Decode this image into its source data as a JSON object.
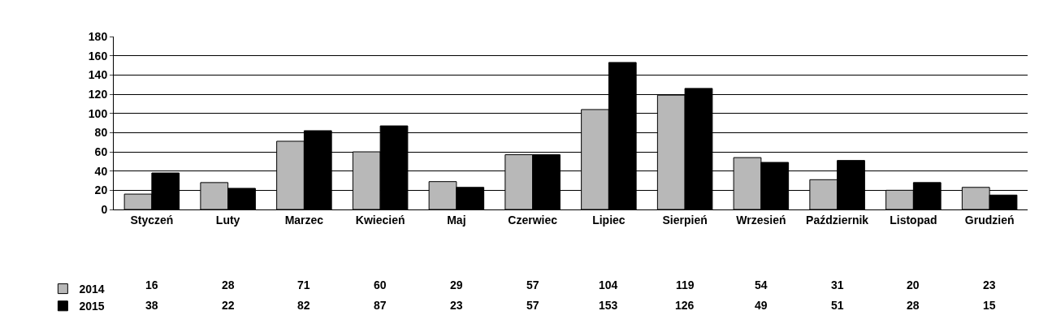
{
  "chart_data": {
    "type": "bar",
    "categories": [
      "Styczeń",
      "Luty",
      "Marzec",
      "Kwiecień",
      "Maj",
      "Czerwiec",
      "Lipiec",
      "Sierpień",
      "Wrzesień",
      "Październik",
      "Listopad",
      "Grudzień"
    ],
    "series": [
      {
        "name": "2014",
        "color": "#b8b8b8",
        "values": [
          16,
          28,
          71,
          60,
          29,
          57,
          104,
          119,
          54,
          31,
          20,
          23
        ]
      },
      {
        "name": "2015",
        "color": "#000000",
        "values": [
          38,
          22,
          82,
          87,
          23,
          57,
          153,
          126,
          49,
          51,
          28,
          15
        ]
      }
    ],
    "ylim": [
      0,
      180
    ],
    "yticks": [
      0,
      20,
      40,
      60,
      80,
      100,
      120,
      140,
      160,
      180
    ],
    "grid": "y",
    "legend": "bottom left",
    "data_labels": true
  }
}
